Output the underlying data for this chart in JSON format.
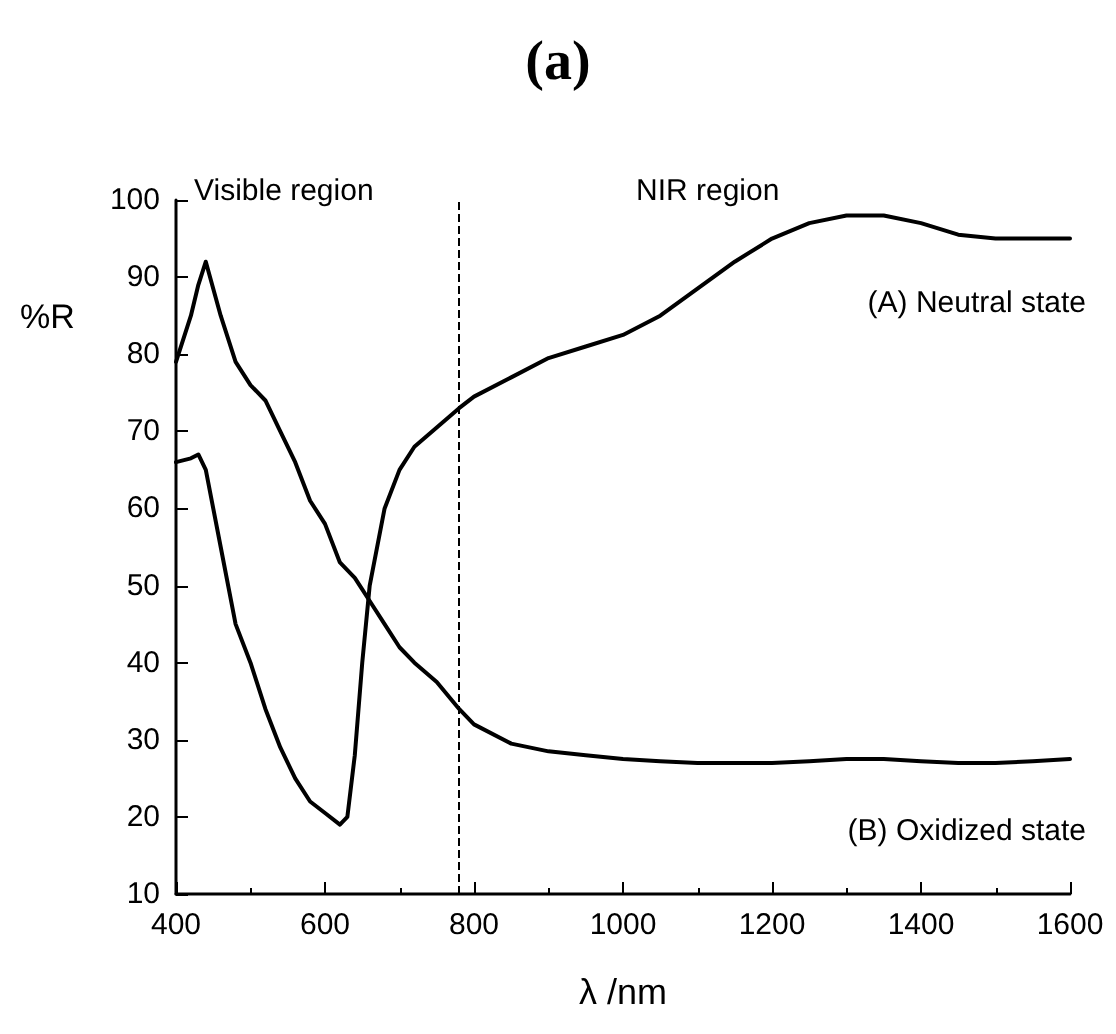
{
  "chart_data": {
    "type": "line",
    "title": "(a)",
    "xlabel": "λ /nm",
    "ylabel": "%R",
    "annotations": [
      "Visible region",
      "NIR region"
    ],
    "x": [
      400,
      420,
      430,
      440,
      460,
      480,
      500,
      520,
      540,
      560,
      580,
      600,
      620,
      630,
      640,
      650,
      660,
      680,
      700,
      720,
      750,
      780,
      800,
      850,
      900,
      950,
      1000,
      1050,
      1100,
      1150,
      1200,
      1250,
      1300,
      1350,
      1400,
      1450,
      1500,
      1550,
      1600
    ],
    "series": [
      {
        "name": "(A) Neutral state",
        "color": "#000000",
        "values": [
          66,
          66.5,
          67,
          65,
          55,
          45,
          40,
          34,
          29,
          25,
          22,
          20.5,
          19,
          20,
          28,
          40,
          50,
          60,
          65,
          68,
          70.5,
          73,
          74.5,
          77,
          79.5,
          81,
          82.5,
          85,
          88.5,
          92,
          95,
          97,
          98,
          98,
          97,
          95.5,
          95,
          95,
          95
        ]
      },
      {
        "name": "(B) Oxidized state",
        "color": "#000000",
        "values": [
          79,
          85,
          89,
          92,
          85,
          79,
          76,
          74,
          70,
          66,
          61,
          58,
          53,
          52,
          51,
          49.5,
          48,
          45,
          42,
          40,
          37.5,
          34,
          32,
          29.5,
          28.5,
          28,
          27.5,
          27.2,
          27,
          27,
          27,
          27.2,
          27.5,
          27.5,
          27.2,
          27,
          27,
          27.2,
          27.5
        ]
      }
    ],
    "xlim": [
      400,
      1600
    ],
    "xticks": [
      400,
      600,
      800,
      1000,
      1200,
      1400,
      1600
    ],
    "ylim": [
      10,
      100
    ],
    "yticks": [
      10,
      20,
      30,
      40,
      50,
      60,
      70,
      80,
      90,
      100
    ],
    "ref_lines": [
      {
        "axis": "x",
        "value": 780,
        "color": "#000000",
        "line_style": "dashed"
      }
    ],
    "grid": false,
    "legend": false,
    "marker": "none",
    "line_style": "solid"
  }
}
